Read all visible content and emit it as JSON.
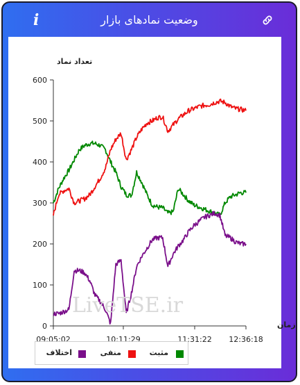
{
  "header": {
    "title": "وضعیت نمادهای بازار",
    "info_icon": "info-icon",
    "link_icon": "link-icon"
  },
  "watermark": "LiveTSE.ir",
  "colors": {
    "positive": "#008800",
    "negative": "#ee1111",
    "difference": "#7a0f8a"
  },
  "chart_data": {
    "type": "line",
    "ylabel": "تعداد نماد",
    "xlabel": "زمان",
    "ylim": [
      0,
      600
    ],
    "yticks": [
      0,
      100,
      200,
      300,
      400,
      500,
      600
    ],
    "xticks": [
      "09:05:02",
      "10:11:29",
      "11:31:22",
      "12:36:18"
    ],
    "legend_position": "bottom-left",
    "series": [
      {
        "name": "مثبت",
        "color": "#008800",
        "values": [
          300,
          335,
          360,
          380,
          405,
          430,
          440,
          445,
          445,
          440,
          430,
          400,
          375,
          340,
          320,
          318,
          375,
          350,
          320,
          295,
          290,
          288,
          275,
          278,
          335,
          320,
          305,
          295,
          290,
          285,
          280,
          275,
          270,
          300,
          315,
          320,
          325,
          325
        ]
      },
      {
        "name": "منفی",
        "color": "#ee1111",
        "values": [
          270,
          320,
          330,
          335,
          300,
          305,
          310,
          320,
          340,
          360,
          385,
          430,
          455,
          470,
          405,
          430,
          460,
          480,
          495,
          500,
          508,
          510,
          475,
          490,
          505,
          515,
          525,
          530,
          535,
          538,
          540,
          545,
          548,
          545,
          535,
          530,
          528,
          525
        ]
      },
      {
        "name": "اختلاف",
        "color": "#7a0f8a",
        "values": [
          30,
          30,
          35,
          40,
          135,
          135,
          130,
          110,
          75,
          60,
          40,
          5,
          150,
          160,
          30,
          80,
          145,
          170,
          190,
          210,
          215,
          215,
          145,
          175,
          195,
          210,
          230,
          245,
          255,
          265,
          270,
          275,
          270,
          220,
          215,
          205,
          200,
          200
        ]
      }
    ]
  }
}
